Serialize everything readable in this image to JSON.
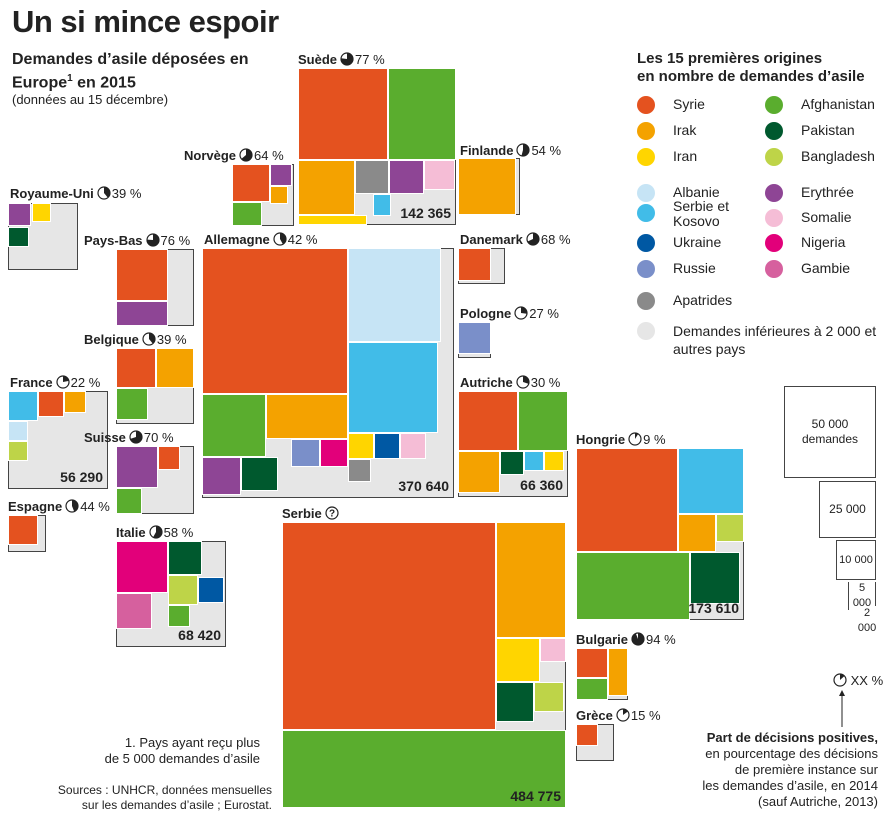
{
  "header": {
    "title": "Un si mince espoir",
    "subtitle": "Demandes d’asile déposées en Europe",
    "subtitle_sup": "1",
    "subtitle_year": " en 2015",
    "subnote": "(données au 15 décembre)"
  },
  "colors": {
    "syrie": "#e4521f",
    "irak": "#f4a200",
    "iran": "#ffd500",
    "afghanistan": "#5aad2e",
    "pakistan": "#00592e",
    "bangladesh": "#bed448",
    "albanie": "#c6e4f5",
    "serbie_kosovo": "#41bce8",
    "ukraine": "#0058a3",
    "russie": "#7a8fc9",
    "erythree": "#8e4595",
    "somalie": "#f5bdd6",
    "nigeria": "#e2007a",
    "gambie": "#d6609e",
    "apatrides": "#8a8a8a",
    "autres": "#e6e6e6"
  },
  "legend": {
    "title_line1": "Les 15 premières origines",
    "title_line2": "en nombre de demandes d’asile",
    "items": [
      {
        "key": "syrie",
        "label": "Syrie"
      },
      {
        "key": "irak",
        "label": "Irak"
      },
      {
        "key": "iran",
        "label": "Iran"
      },
      {
        "key": "afghanistan",
        "label": "Afghanistan"
      },
      {
        "key": "pakistan",
        "label": "Pakistan"
      },
      {
        "key": "bangladesh",
        "label": "Bangladesh"
      },
      {
        "key": "albanie",
        "label": "Albanie"
      },
      {
        "key": "serbie_kosovo",
        "label": "Serbie et Kosovo"
      },
      {
        "key": "ukraine",
        "label": "Ukraine"
      },
      {
        "key": "russie",
        "label": "Russie"
      },
      {
        "key": "erythree",
        "label": "Erythrée"
      },
      {
        "key": "somalie",
        "label": "Somalie"
      },
      {
        "key": "nigeria",
        "label": "Nigeria"
      },
      {
        "key": "gambie",
        "label": "Gambie"
      },
      {
        "key": "apatrides",
        "label": "Apatrides"
      },
      {
        "key": "autres",
        "label": "Demandes inférieures à 2 000 et autres pays"
      }
    ]
  },
  "scale": {
    "items": [
      {
        "value": 50000,
        "label": "50 000 demandes"
      },
      {
        "value": 25000,
        "label": "25 000"
      },
      {
        "value": 10000,
        "label": "10 000"
      },
      {
        "value": 5000,
        "label": "5 000"
      },
      {
        "value": 2000,
        "label": "2 000"
      }
    ]
  },
  "pie_legend": {
    "sample": "XX %",
    "title": "Part de décisions positives,",
    "text_line1": "en pourcentage des décisions",
    "text_line2": "de première instance sur",
    "text_line3": "les demandes d’asile, en 2014",
    "text_line4": "(sauf Autriche, 2013)"
  },
  "footnotes": {
    "note_line1": "1. Pays ayant reçu plus",
    "note_line2": "de 5 000 demandes d’asile",
    "sources_line1": "Sources : UNHCR, données mensuelles",
    "sources_line2": "sur les demandes d’asile ; Eurostat."
  },
  "chart_data": {
    "type": "treemap",
    "unit": "demandes d’asile",
    "countries": [
      {
        "name": "Suède",
        "positive_rate": 77,
        "total": 142365,
        "total_label": "142 365"
      },
      {
        "name": "Norvège",
        "positive_rate": 64,
        "total": null,
        "total_label": ""
      },
      {
        "name": "Finlande",
        "positive_rate": 54,
        "total": null,
        "total_label": ""
      },
      {
        "name": "Royaume-Uni",
        "positive_rate": 39,
        "total": null,
        "total_label": ""
      },
      {
        "name": "Pays-Bas",
        "positive_rate": 76,
        "total": null,
        "total_label": ""
      },
      {
        "name": "Allemagne",
        "positive_rate": 42,
        "total": 370640,
        "total_label": "370 640"
      },
      {
        "name": "Danemark",
        "positive_rate": 68,
        "total": null,
        "total_label": ""
      },
      {
        "name": "Pologne",
        "positive_rate": 27,
        "total": null,
        "total_label": ""
      },
      {
        "name": "Belgique",
        "positive_rate": 39,
        "total": null,
        "total_label": ""
      },
      {
        "name": "France",
        "positive_rate": 22,
        "total": 56290,
        "total_label": "56 290"
      },
      {
        "name": "Autriche",
        "positive_rate": 30,
        "total": 66360,
        "total_label": "66 360"
      },
      {
        "name": "Suisse",
        "positive_rate": 70,
        "total": null,
        "total_label": ""
      },
      {
        "name": "Hongrie",
        "positive_rate": 9,
        "total": 173610,
        "total_label": "173 610"
      },
      {
        "name": "Espagne",
        "positive_rate": 44,
        "total": null,
        "total_label": ""
      },
      {
        "name": "Serbie",
        "positive_rate": null,
        "total": 484775,
        "total_label": "484 775"
      },
      {
        "name": "Italie",
        "positive_rate": 58,
        "total": 68420,
        "total_label": "68 420"
      },
      {
        "name": "Bulgarie",
        "positive_rate": 94,
        "total": null,
        "total_label": ""
      },
      {
        "name": "Grèce",
        "positive_rate": 15,
        "total": null,
        "total_label": ""
      }
    ]
  }
}
